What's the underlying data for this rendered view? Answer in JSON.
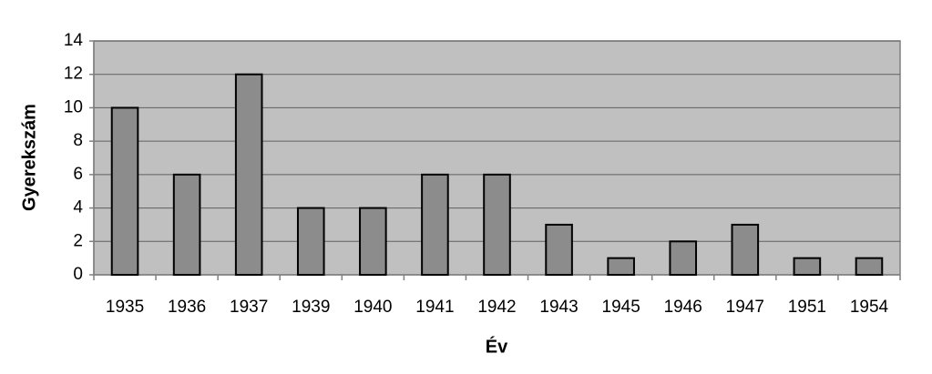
{
  "chart_data": {
    "type": "bar",
    "x_label": "Év",
    "y_label": "Gyerekszám",
    "categories": [
      "1935",
      "1936",
      "1937",
      "1939",
      "1940",
      "1941",
      "1942",
      "1943",
      "1945",
      "1946",
      "1947",
      "1951",
      "1954"
    ],
    "values": [
      10,
      6,
      12,
      4,
      4,
      6,
      6,
      3,
      1,
      2,
      3,
      1,
      1
    ],
    "color": "#8c8c8c",
    "ylim": [
      0,
      14
    ],
    "yticks": [
      0,
      2,
      4,
      6,
      8,
      10,
      12,
      14
    ],
    "grid": true
  }
}
